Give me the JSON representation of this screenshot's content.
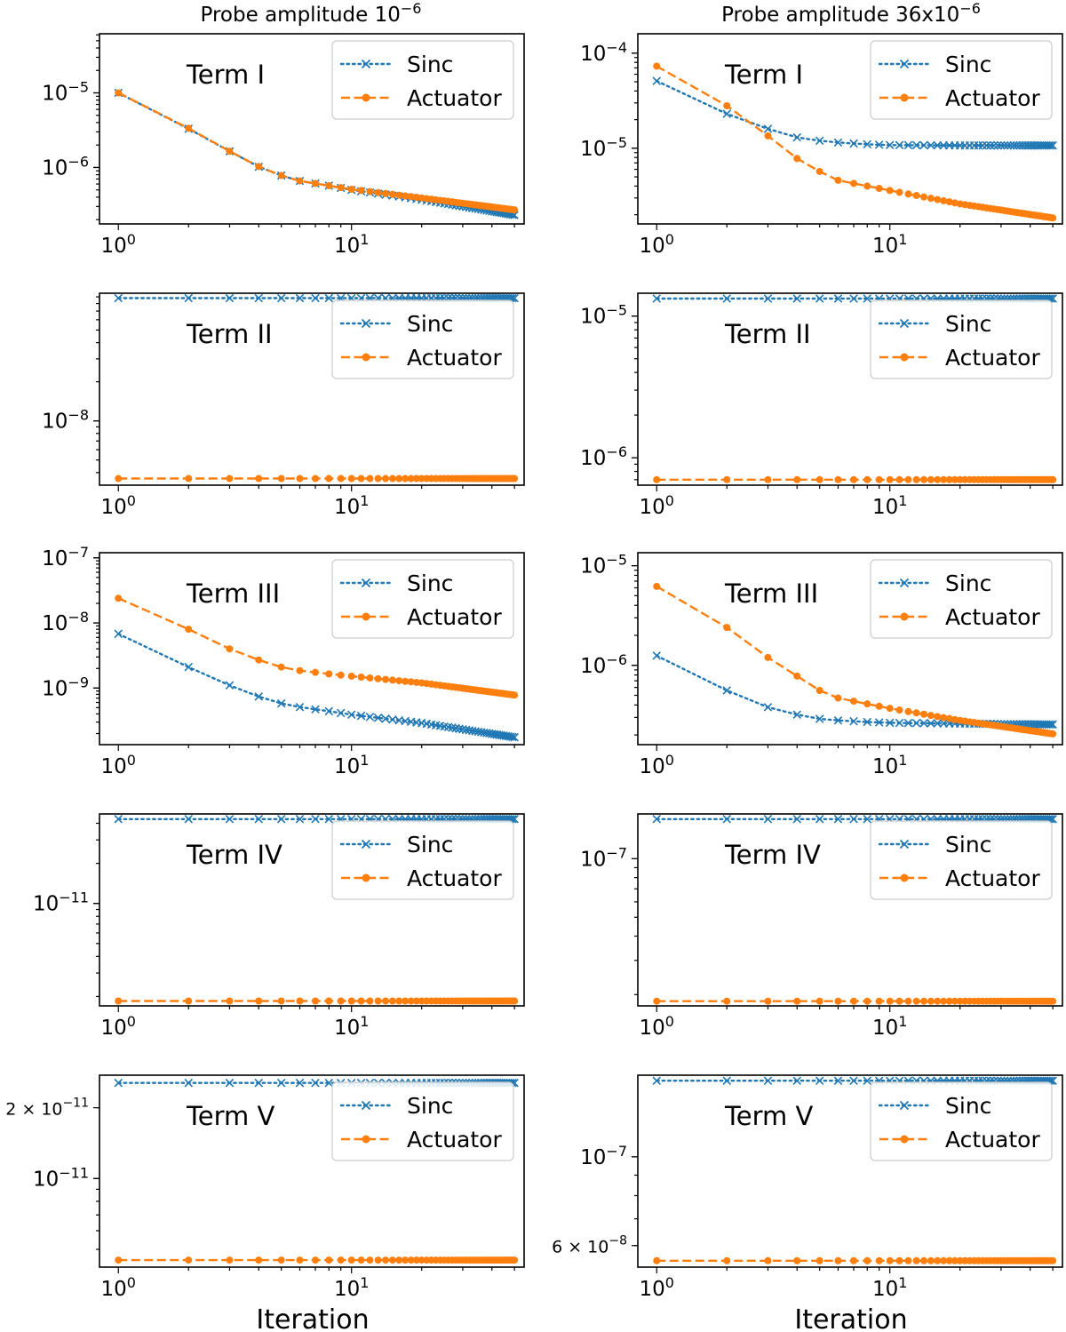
{
  "columns": [
    {
      "title_base": "Probe amplitude 10",
      "title_sup": "−6"
    },
    {
      "title_base": "Probe amplitude 36x10",
      "title_sup": "−6"
    }
  ],
  "xlabel": "Iteration",
  "legend": {
    "sinc": "Sinc",
    "actuator": "Actuator"
  },
  "colors": {
    "sinc": "#1f77b4",
    "actuator": "#ff7f0e"
  },
  "chart_data": [
    {
      "type": "line",
      "panel": "Term I, probe 10^-6",
      "label": "Term I",
      "xscale": "log",
      "yscale": "log",
      "xlim": [
        0.83,
        55
      ],
      "ylim": [
        1.75e-07,
        6.2e-05
      ],
      "yticks": [
        {
          "base": "10",
          "sup": "−5",
          "value": 1e-05
        },
        {
          "base": "10",
          "sup": "−6",
          "value": 1e-06
        }
      ],
      "xticks": [
        {
          "base": "10",
          "sup": "0",
          "value": 1
        },
        {
          "base": "10",
          "sup": "1",
          "value": 10
        }
      ],
      "series": [
        {
          "name": "Sinc",
          "anchors": [
            [
              1,
              1e-05
            ],
            [
              2,
              3.3e-06
            ],
            [
              3,
              1.65e-06
            ],
            [
              4,
              1.02e-06
            ],
            [
              5,
              7.8e-07
            ],
            [
              6,
              6.6e-07
            ],
            [
              8,
              5.7e-07
            ],
            [
              10,
              5e-07
            ],
            [
              20,
              3.7e-07
            ],
            [
              50,
              2.3e-07
            ]
          ]
        },
        {
          "name": "Actuator",
          "anchors": [
            [
              1,
              1e-05
            ],
            [
              2,
              3.35e-06
            ],
            [
              3,
              1.65e-06
            ],
            [
              4,
              1.03e-06
            ],
            [
              5,
              7.8e-07
            ],
            [
              6,
              6.6e-07
            ],
            [
              8,
              5.7e-07
            ],
            [
              10,
              5.1e-07
            ],
            [
              20,
              3.9e-07
            ],
            [
              50,
              2.7e-07
            ]
          ]
        }
      ]
    },
    {
      "type": "line",
      "panel": "Term I, probe 36x10^-6",
      "label": "Term I",
      "xscale": "log",
      "yscale": "log",
      "xlim": [
        0.83,
        55
      ],
      "ylim": [
        1.6e-06,
        0.00016
      ],
      "yticks": [
        {
          "base": "10",
          "sup": "−4",
          "value": 0.0001
        },
        {
          "base": "10",
          "sup": "−5",
          "value": 1e-05
        }
      ],
      "xticks": [
        {
          "base": "10",
          "sup": "0",
          "value": 1
        },
        {
          "base": "10",
          "sup": "1",
          "value": 10
        }
      ],
      "series": [
        {
          "name": "Sinc",
          "anchors": [
            [
              1,
              5.1e-05
            ],
            [
              2,
              2.3e-05
            ],
            [
              3,
              1.6e-05
            ],
            [
              4,
              1.3e-05
            ],
            [
              5,
              1.2e-05
            ],
            [
              6,
              1.15e-05
            ],
            [
              8,
              1.1e-05
            ],
            [
              10,
              1.08e-05
            ],
            [
              20,
              1.07e-05
            ],
            [
              50,
              1.07e-05
            ]
          ]
        },
        {
          "name": "Actuator",
          "anchors": [
            [
              1,
              7.3e-05
            ],
            [
              2,
              2.8e-05
            ],
            [
              3,
              1.35e-05
            ],
            [
              4,
              7.8e-06
            ],
            [
              5,
              5.7e-06
            ],
            [
              6,
              4.6e-06
            ],
            [
              8,
              4e-06
            ],
            [
              10,
              3.6e-06
            ],
            [
              20,
              2.6e-06
            ],
            [
              50,
              1.85e-06
            ]
          ]
        }
      ]
    },
    {
      "type": "line",
      "panel": "Term II, probe 10^-6",
      "label": "Term II",
      "xscale": "log",
      "yscale": "log",
      "xlim": [
        0.83,
        55
      ],
      "ylim": [
        3.2e-09,
        9.6e-08
      ],
      "yticks": [
        {
          "base": "10",
          "sup": "−8",
          "value": 1e-08
        }
      ],
      "xticks": [
        {
          "base": "10",
          "sup": "0",
          "value": 1
        },
        {
          "base": "10",
          "sup": "1",
          "value": 10
        }
      ],
      "series": [
        {
          "name": "Sinc",
          "anchors": [
            [
              1,
              8.8e-08
            ],
            [
              50,
              8.8e-08
            ]
          ]
        },
        {
          "name": "Actuator",
          "anchors": [
            [
              1,
              3.6e-09
            ],
            [
              50,
              3.6e-09
            ]
          ]
        }
      ]
    },
    {
      "type": "line",
      "panel": "Term II, probe 36x10^-6",
      "label": "Term II",
      "xscale": "log",
      "yscale": "log",
      "xlim": [
        0.83,
        55
      ],
      "ylim": [
        6.4e-07,
        1.45e-05
      ],
      "yticks": [
        {
          "base": "10",
          "sup": "−5",
          "value": 1e-05
        },
        {
          "base": "10",
          "sup": "−6",
          "value": 1e-06
        }
      ],
      "xticks": [
        {
          "base": "10",
          "sup": "0",
          "value": 1
        },
        {
          "base": "10",
          "sup": "1",
          "value": 10
        }
      ],
      "series": [
        {
          "name": "Sinc",
          "anchors": [
            [
              1,
              1.33e-05
            ],
            [
              50,
              1.33e-05
            ]
          ]
        },
        {
          "name": "Actuator",
          "anchors": [
            [
              1,
              7e-07
            ],
            [
              50,
              7e-07
            ]
          ]
        }
      ]
    },
    {
      "type": "line",
      "panel": "Term III, probe 10^-6",
      "label": "Term III",
      "xscale": "log",
      "yscale": "log",
      "xlim": [
        0.83,
        55
      ],
      "ylim": [
        1.35e-10,
        1.2e-07
      ],
      "yticks": [
        {
          "base": "10",
          "sup": "−7",
          "value": 1e-07
        },
        {
          "base": "10",
          "sup": "−8",
          "value": 1e-08
        },
        {
          "base": "10",
          "sup": "−9",
          "value": 1e-09
        }
      ],
      "xticks": [
        {
          "base": "10",
          "sup": "0",
          "value": 1
        },
        {
          "base": "10",
          "sup": "1",
          "value": 10
        }
      ],
      "series": [
        {
          "name": "Sinc",
          "anchors": [
            [
              1,
              6.8e-09
            ],
            [
              2,
              2.1e-09
            ],
            [
              3,
              1.1e-09
            ],
            [
              4,
              7.4e-10
            ],
            [
              5,
              5.8e-10
            ],
            [
              6,
              5.1e-10
            ],
            [
              8,
              4.4e-10
            ],
            [
              10,
              3.9e-10
            ],
            [
              20,
              2.9e-10
            ],
            [
              50,
              1.75e-10
            ]
          ]
        },
        {
          "name": "Actuator",
          "anchors": [
            [
              1,
              2.4e-08
            ],
            [
              2,
              8e-09
            ],
            [
              3,
              4e-09
            ],
            [
              4,
              2.7e-09
            ],
            [
              5,
              2.1e-09
            ],
            [
              6,
              1.85e-09
            ],
            [
              8,
              1.65e-09
            ],
            [
              10,
              1.52e-09
            ],
            [
              20,
              1.2e-09
            ],
            [
              50,
              7.8e-10
            ]
          ]
        }
      ]
    },
    {
      "type": "line",
      "panel": "Term III, probe 36x10^-6",
      "label": "Term III",
      "xscale": "log",
      "yscale": "log",
      "xlim": [
        0.83,
        55
      ],
      "ylim": [
        1.6e-07,
        1.35e-05
      ],
      "yticks": [
        {
          "base": "10",
          "sup": "−5",
          "value": 1e-05
        },
        {
          "base": "10",
          "sup": "−6",
          "value": 1e-06
        }
      ],
      "xticks": [
        {
          "base": "10",
          "sup": "0",
          "value": 1
        },
        {
          "base": "10",
          "sup": "1",
          "value": 10
        }
      ],
      "series": [
        {
          "name": "Sinc",
          "anchors": [
            [
              1,
              1.25e-06
            ],
            [
              2,
              5.6e-07
            ],
            [
              3,
              3.8e-07
            ],
            [
              4,
              3.2e-07
            ],
            [
              5,
              2.9e-07
            ],
            [
              6,
              2.8e-07
            ],
            [
              8,
              2.7e-07
            ],
            [
              10,
              2.65e-07
            ],
            [
              20,
              2.6e-07
            ],
            [
              50,
              2.55e-07
            ]
          ]
        },
        {
          "name": "Actuator",
          "anchors": [
            [
              1,
              6.2e-06
            ],
            [
              2,
              2.4e-06
            ],
            [
              3,
              1.2e-06
            ],
            [
              4,
              7.8e-07
            ],
            [
              5,
              5.6e-07
            ],
            [
              6,
              4.7e-07
            ],
            [
              8,
              4.1e-07
            ],
            [
              10,
              3.7e-07
            ],
            [
              20,
              2.8e-07
            ],
            [
              50,
              2.05e-07
            ]
          ]
        }
      ]
    },
    {
      "type": "line",
      "panel": "Term IV, probe 10^-6",
      "label": "Term IV",
      "xscale": "log",
      "yscale": "log",
      "xlim": [
        0.83,
        55
      ],
      "ylim": [
        1.7e-12,
        4.7e-11
      ],
      "yticks": [
        {
          "base": "10",
          "sup": "−11",
          "value": 1e-11
        }
      ],
      "xticks": [
        {
          "base": "10",
          "sup": "0",
          "value": 1
        },
        {
          "base": "10",
          "sup": "1",
          "value": 10
        }
      ],
      "series": [
        {
          "name": "Sinc",
          "anchors": [
            [
              1,
              4.3e-11
            ],
            [
              50,
              4.3e-11
            ]
          ]
        },
        {
          "name": "Actuator",
          "anchors": [
            [
              1,
              1.85e-12
            ],
            [
              50,
              1.85e-12
            ]
          ]
        }
      ]
    },
    {
      "type": "line",
      "panel": "Term IV, probe 36x10^-6",
      "label": "Term IV",
      "xscale": "log",
      "yscale": "log",
      "xlim": [
        0.83,
        55
      ],
      "ylim": [
        1.75e-08,
        1.7e-07
      ],
      "yticks": [
        {
          "base": "10",
          "sup": "−7",
          "value": 1e-07
        }
      ],
      "xticks": [
        {
          "base": "10",
          "sup": "0",
          "value": 1
        },
        {
          "base": "10",
          "sup": "1",
          "value": 10
        }
      ],
      "series": [
        {
          "name": "Sinc",
          "anchors": [
            [
              1,
              1.6e-07
            ],
            [
              50,
              1.6e-07
            ]
          ]
        },
        {
          "name": "Actuator",
          "anchors": [
            [
              1,
              1.85e-08
            ],
            [
              50,
              1.85e-08
            ]
          ]
        }
      ]
    },
    {
      "type": "line",
      "panel": "Term V, probe 10^-6",
      "label": "Term V",
      "xscale": "log",
      "yscale": "log",
      "xlim": [
        0.83,
        55
      ],
      "ylim": [
        4.2e-12,
        2.75e-11
      ],
      "yticks": [
        {
          "base": "2 × 10",
          "sup": "−11",
          "value": 2e-11
        },
        {
          "base": "10",
          "sup": "−11",
          "value": 1e-11
        }
      ],
      "xticks": [
        {
          "base": "10",
          "sup": "0",
          "value": 1
        },
        {
          "base": "10",
          "sup": "1",
          "value": 10
        }
      ],
      "series": [
        {
          "name": "Sinc",
          "anchors": [
            [
              1,
              2.55e-11
            ],
            [
              50,
              2.55e-11
            ]
          ]
        },
        {
          "name": "Actuator",
          "anchors": [
            [
              1,
              4.5e-12
            ],
            [
              50,
              4.5e-12
            ]
          ]
        }
      ]
    },
    {
      "type": "line",
      "panel": "Term V, probe 36x10^-6",
      "label": "Term V",
      "xscale": "log",
      "yscale": "log",
      "xlim": [
        0.83,
        55
      ],
      "ylim": [
        5.3e-08,
        1.6e-07
      ],
      "yticks": [
        {
          "base": "10",
          "sup": "−7",
          "value": 1e-07
        },
        {
          "base": "6 × 10",
          "sup": "−8",
          "value": 6e-08
        }
      ],
      "xticks": [
        {
          "base": "10",
          "sup": "0",
          "value": 1
        },
        {
          "base": "10",
          "sup": "1",
          "value": 10
        }
      ],
      "series": [
        {
          "name": "Sinc",
          "anchors": [
            [
              1,
              1.55e-07
            ],
            [
              50,
              1.55e-07
            ]
          ]
        },
        {
          "name": "Actuator",
          "anchors": [
            [
              1,
              5.5e-08
            ],
            [
              50,
              5.5e-08
            ]
          ]
        }
      ]
    }
  ]
}
